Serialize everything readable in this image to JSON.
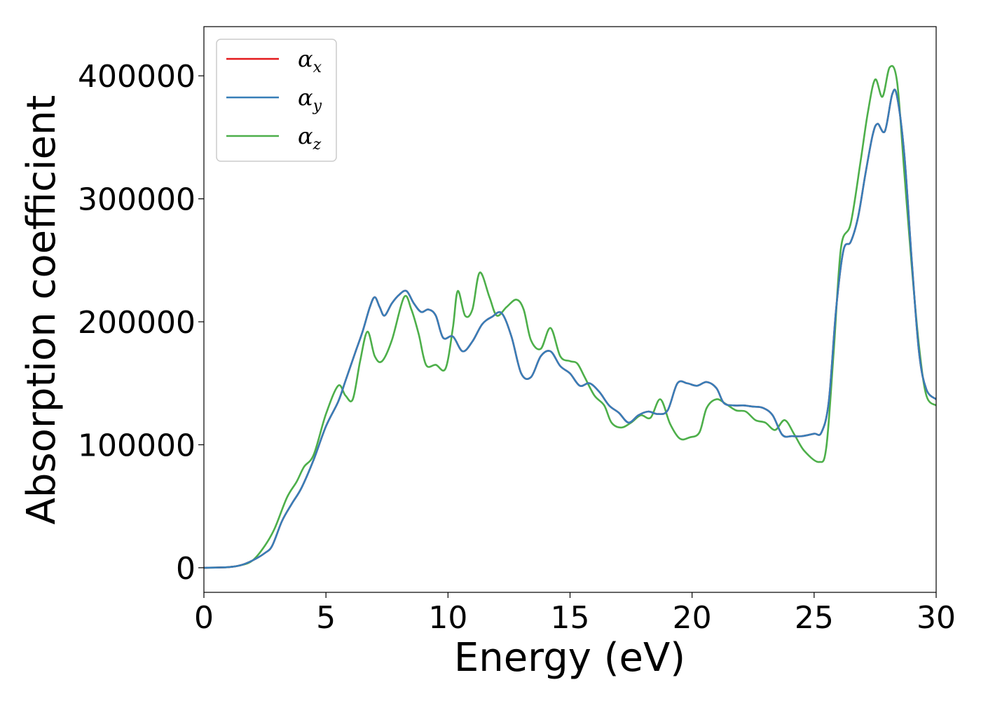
{
  "chart_data": {
    "type": "line",
    "title": "",
    "xlabel": "Energy (eV)",
    "ylabel": "Absorption coefficient",
    "xlim": [
      0,
      30
    ],
    "ylim": [
      -20000,
      440000
    ],
    "xticks": [
      0,
      5,
      10,
      15,
      20,
      25,
      30
    ],
    "yticks": [
      0,
      100000,
      200000,
      300000,
      400000
    ],
    "grid": false,
    "legend_position": "top-left",
    "series": [
      {
        "name": "x",
        "color": "#e41a1c",
        "points": [
          [
            0,
            0
          ],
          [
            1,
            500
          ],
          [
            1.5,
            2000
          ],
          [
            2,
            6000
          ],
          [
            2.5,
            12000
          ],
          [
            2.8,
            18000
          ],
          [
            3.2,
            38000
          ],
          [
            3.6,
            52000
          ],
          [
            4,
            65000
          ],
          [
            4.5,
            88000
          ],
          [
            5,
            115000
          ],
          [
            5.5,
            135000
          ],
          [
            5.8,
            152000
          ],
          [
            6.2,
            175000
          ],
          [
            6.5,
            192000
          ],
          [
            6.8,
            212000
          ],
          [
            7,
            220000
          ],
          [
            7.2,
            212000
          ],
          [
            7.4,
            205000
          ],
          [
            7.7,
            215000
          ],
          [
            8,
            222000
          ],
          [
            8.3,
            225000
          ],
          [
            8.6,
            215000
          ],
          [
            8.9,
            208000
          ],
          [
            9.2,
            210000
          ],
          [
            9.5,
            205000
          ],
          [
            9.8,
            187000
          ],
          [
            10.2,
            188000
          ],
          [
            10.6,
            176000
          ],
          [
            11,
            184000
          ],
          [
            11.4,
            198000
          ],
          [
            11.8,
            204000
          ],
          [
            12.2,
            207000
          ],
          [
            12.6,
            188000
          ],
          [
            13,
            158000
          ],
          [
            13.4,
            155000
          ],
          [
            13.8,
            172000
          ],
          [
            14.2,
            176000
          ],
          [
            14.6,
            164000
          ],
          [
            15,
            158000
          ],
          [
            15.4,
            148000
          ],
          [
            15.8,
            150000
          ],
          [
            16.2,
            143000
          ],
          [
            16.6,
            132000
          ],
          [
            17,
            126000
          ],
          [
            17.4,
            118000
          ],
          [
            17.8,
            124000
          ],
          [
            18.2,
            127000
          ],
          [
            18.6,
            125000
          ],
          [
            19,
            128000
          ],
          [
            19.4,
            150000
          ],
          [
            19.8,
            150000
          ],
          [
            20.2,
            148000
          ],
          [
            20.6,
            151000
          ],
          [
            21,
            146000
          ],
          [
            21.3,
            134000
          ],
          [
            21.7,
            132000
          ],
          [
            22.1,
            132000
          ],
          [
            22.5,
            131000
          ],
          [
            22.9,
            130000
          ],
          [
            23.3,
            124000
          ],
          [
            23.7,
            108000
          ],
          [
            24.1,
            107000
          ],
          [
            24.5,
            107000
          ],
          [
            25,
            109000
          ],
          [
            25.3,
            110000
          ],
          [
            25.6,
            135000
          ],
          [
            25.9,
            210000
          ],
          [
            26.2,
            258000
          ],
          [
            26.5,
            265000
          ],
          [
            26.8,
            285000
          ],
          [
            27.1,
            320000
          ],
          [
            27.4,
            352000
          ],
          [
            27.6,
            361000
          ],
          [
            27.9,
            355000
          ],
          [
            28.2,
            385000
          ],
          [
            28.4,
            383000
          ],
          [
            28.7,
            335000
          ],
          [
            29,
            250000
          ],
          [
            29.3,
            175000
          ],
          [
            29.6,
            145000
          ],
          [
            30,
            137000
          ]
        ]
      },
      {
        "name": "y",
        "color": "#377eb8",
        "points": [
          [
            0,
            0
          ],
          [
            1,
            500
          ],
          [
            1.5,
            2000
          ],
          [
            2,
            6000
          ],
          [
            2.5,
            12000
          ],
          [
            2.8,
            18000
          ],
          [
            3.2,
            38000
          ],
          [
            3.6,
            52000
          ],
          [
            4,
            65000
          ],
          [
            4.5,
            88000
          ],
          [
            5,
            115000
          ],
          [
            5.5,
            135000
          ],
          [
            5.8,
            152000
          ],
          [
            6.2,
            175000
          ],
          [
            6.5,
            192000
          ],
          [
            6.8,
            212000
          ],
          [
            7,
            220000
          ],
          [
            7.2,
            212000
          ],
          [
            7.4,
            205000
          ],
          [
            7.7,
            215000
          ],
          [
            8,
            222000
          ],
          [
            8.3,
            225000
          ],
          [
            8.6,
            215000
          ],
          [
            8.9,
            208000
          ],
          [
            9.2,
            210000
          ],
          [
            9.5,
            205000
          ],
          [
            9.8,
            187000
          ],
          [
            10.2,
            188000
          ],
          [
            10.6,
            176000
          ],
          [
            11,
            184000
          ],
          [
            11.4,
            198000
          ],
          [
            11.8,
            204000
          ],
          [
            12.2,
            207000
          ],
          [
            12.6,
            188000
          ],
          [
            13,
            158000
          ],
          [
            13.4,
            155000
          ],
          [
            13.8,
            172000
          ],
          [
            14.2,
            176000
          ],
          [
            14.6,
            164000
          ],
          [
            15,
            158000
          ],
          [
            15.4,
            148000
          ],
          [
            15.8,
            150000
          ],
          [
            16.2,
            143000
          ],
          [
            16.6,
            132000
          ],
          [
            17,
            126000
          ],
          [
            17.4,
            118000
          ],
          [
            17.8,
            124000
          ],
          [
            18.2,
            127000
          ],
          [
            18.6,
            125000
          ],
          [
            19,
            128000
          ],
          [
            19.4,
            150000
          ],
          [
            19.8,
            150000
          ],
          [
            20.2,
            148000
          ],
          [
            20.6,
            151000
          ],
          [
            21,
            146000
          ],
          [
            21.3,
            134000
          ],
          [
            21.7,
            132000
          ],
          [
            22.1,
            132000
          ],
          [
            22.5,
            131000
          ],
          [
            22.9,
            130000
          ],
          [
            23.3,
            124000
          ],
          [
            23.7,
            108000
          ],
          [
            24.1,
            107000
          ],
          [
            24.5,
            107000
          ],
          [
            25,
            109000
          ],
          [
            25.3,
            110000
          ],
          [
            25.6,
            135000
          ],
          [
            25.9,
            210000
          ],
          [
            26.2,
            258000
          ],
          [
            26.5,
            265000
          ],
          [
            26.8,
            285000
          ],
          [
            27.1,
            320000
          ],
          [
            27.4,
            352000
          ],
          [
            27.6,
            361000
          ],
          [
            27.9,
            355000
          ],
          [
            28.2,
            385000
          ],
          [
            28.4,
            383000
          ],
          [
            28.7,
            335000
          ],
          [
            29,
            250000
          ],
          [
            29.3,
            175000
          ],
          [
            29.6,
            145000
          ],
          [
            30,
            137000
          ]
        ]
      },
      {
        "name": "z",
        "color": "#4daf4a",
        "points": [
          [
            0,
            0
          ],
          [
            1,
            500
          ],
          [
            1.5,
            2000
          ],
          [
            2,
            6000
          ],
          [
            2.5,
            18000
          ],
          [
            2.9,
            32000
          ],
          [
            3.4,
            57000
          ],
          [
            3.8,
            70000
          ],
          [
            4.1,
            82000
          ],
          [
            4.5,
            92000
          ],
          [
            5,
            125000
          ],
          [
            5.5,
            148000
          ],
          [
            5.8,
            140000
          ],
          [
            6.1,
            137000
          ],
          [
            6.4,
            168000
          ],
          [
            6.7,
            192000
          ],
          [
            7,
            172000
          ],
          [
            7.3,
            168000
          ],
          [
            7.7,
            185000
          ],
          [
            8.2,
            220000
          ],
          [
            8.5,
            210000
          ],
          [
            8.8,
            190000
          ],
          [
            9.1,
            165000
          ],
          [
            9.5,
            165000
          ],
          [
            9.9,
            162000
          ],
          [
            10.2,
            195000
          ],
          [
            10.4,
            225000
          ],
          [
            10.7,
            205000
          ],
          [
            11,
            210000
          ],
          [
            11.3,
            240000
          ],
          [
            11.7,
            220000
          ],
          [
            12,
            205000
          ],
          [
            12.4,
            212000
          ],
          [
            12.8,
            218000
          ],
          [
            13.1,
            210000
          ],
          [
            13.4,
            185000
          ],
          [
            13.8,
            178000
          ],
          [
            14.2,
            195000
          ],
          [
            14.6,
            172000
          ],
          [
            15,
            168000
          ],
          [
            15.3,
            166000
          ],
          [
            15.6,
            155000
          ],
          [
            16,
            140000
          ],
          [
            16.4,
            132000
          ],
          [
            16.7,
            118000
          ],
          [
            17.1,
            114000
          ],
          [
            17.5,
            118000
          ],
          [
            17.9,
            124000
          ],
          [
            18.3,
            122000
          ],
          [
            18.7,
            137000
          ],
          [
            19.1,
            117000
          ],
          [
            19.5,
            105000
          ],
          [
            19.9,
            106000
          ],
          [
            20.3,
            110000
          ],
          [
            20.6,
            130000
          ],
          [
            21,
            137000
          ],
          [
            21.4,
            133000
          ],
          [
            21.8,
            128000
          ],
          [
            22.2,
            127000
          ],
          [
            22.6,
            120000
          ],
          [
            23,
            118000
          ],
          [
            23.4,
            112000
          ],
          [
            23.8,
            120000
          ],
          [
            24.2,
            108000
          ],
          [
            24.6,
            95000
          ],
          [
            25.2,
            86000
          ],
          [
            25.5,
            98000
          ],
          [
            25.8,
            175000
          ],
          [
            26.1,
            260000
          ],
          [
            26.5,
            280000
          ],
          [
            26.9,
            330000
          ],
          [
            27.2,
            370000
          ],
          [
            27.5,
            397000
          ],
          [
            27.8,
            383000
          ],
          [
            28.1,
            407000
          ],
          [
            28.4,
            395000
          ],
          [
            28.7,
            320000
          ],
          [
            29,
            245000
          ],
          [
            29.3,
            180000
          ],
          [
            29.6,
            140000
          ],
          [
            30,
            132000
          ]
        ]
      }
    ]
  },
  "legend": {
    "symbol": "α",
    "subscripts": [
      "x",
      "y",
      "z"
    ]
  }
}
